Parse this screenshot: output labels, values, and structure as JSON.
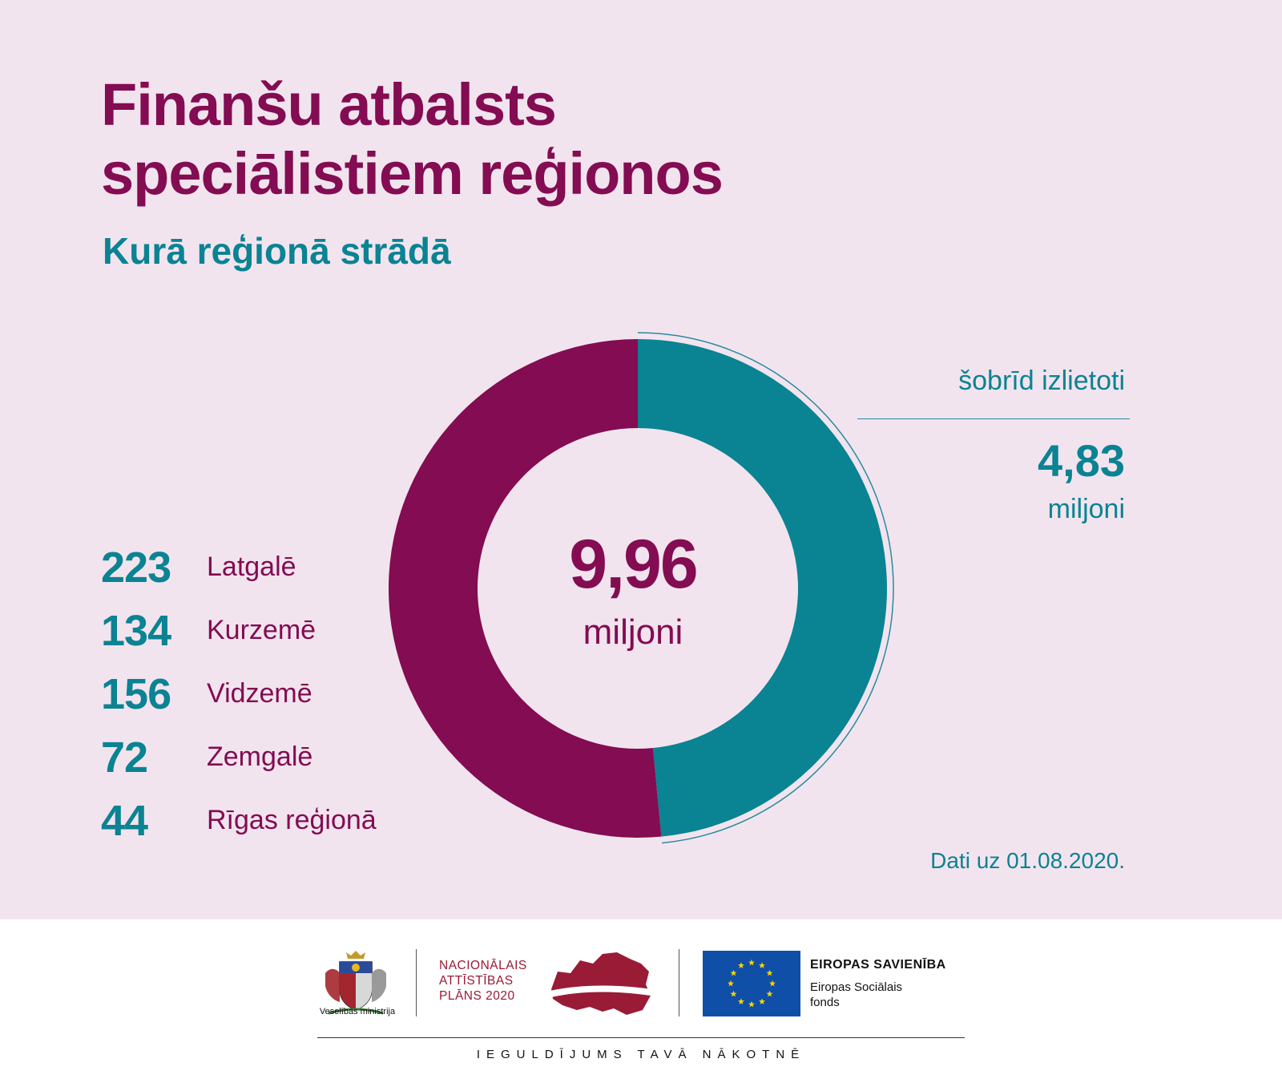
{
  "title_lines": [
    "Finanšu atbalsts",
    "speciālistiem reģionos"
  ],
  "subtitle": "Kurā reģionā strādā",
  "regions": [
    {
      "count": "223",
      "name": "Latgalē"
    },
    {
      "count": "134",
      "name": "Kurzemē"
    },
    {
      "count": "156",
      "name": "Vidzemē"
    },
    {
      "count": "72",
      "name": "Zemgalē"
    },
    {
      "count": "44",
      "name": "Rīgas reģionā"
    }
  ],
  "chart_data": {
    "type": "pie",
    "variant": "donut",
    "total_label": "9,96",
    "total_unit": "miljoni",
    "total": 9.96,
    "slices": [
      {
        "label": "šobrīd izlietoti",
        "value": 4.83,
        "color": "#0a8393"
      },
      {
        "label": "",
        "value": 5.13,
        "color": "#830c52"
      }
    ],
    "callout": {
      "label": "šobrīd izlietoti",
      "value": "4,83",
      "unit": "miljoni"
    }
  },
  "date_note": "Dati uz 01.08.2020.",
  "colors": {
    "primary": "#830c52",
    "accent": "#0a8393",
    "background": "#f2e4ee"
  },
  "footer": {
    "ministry": "Veselības ministrija",
    "nap_lines": [
      "NACIONĀLAIS",
      "ATTĪSTĪBAS",
      "PLĀNS 2020"
    ],
    "eu_title": "EIROPAS SAVIENĪBA",
    "eu_sub_lines": [
      "Eiropas Sociālais",
      "fonds"
    ],
    "tagline": "IEGULDĪJUMS TAVĀ NĀKOTNĒ"
  }
}
